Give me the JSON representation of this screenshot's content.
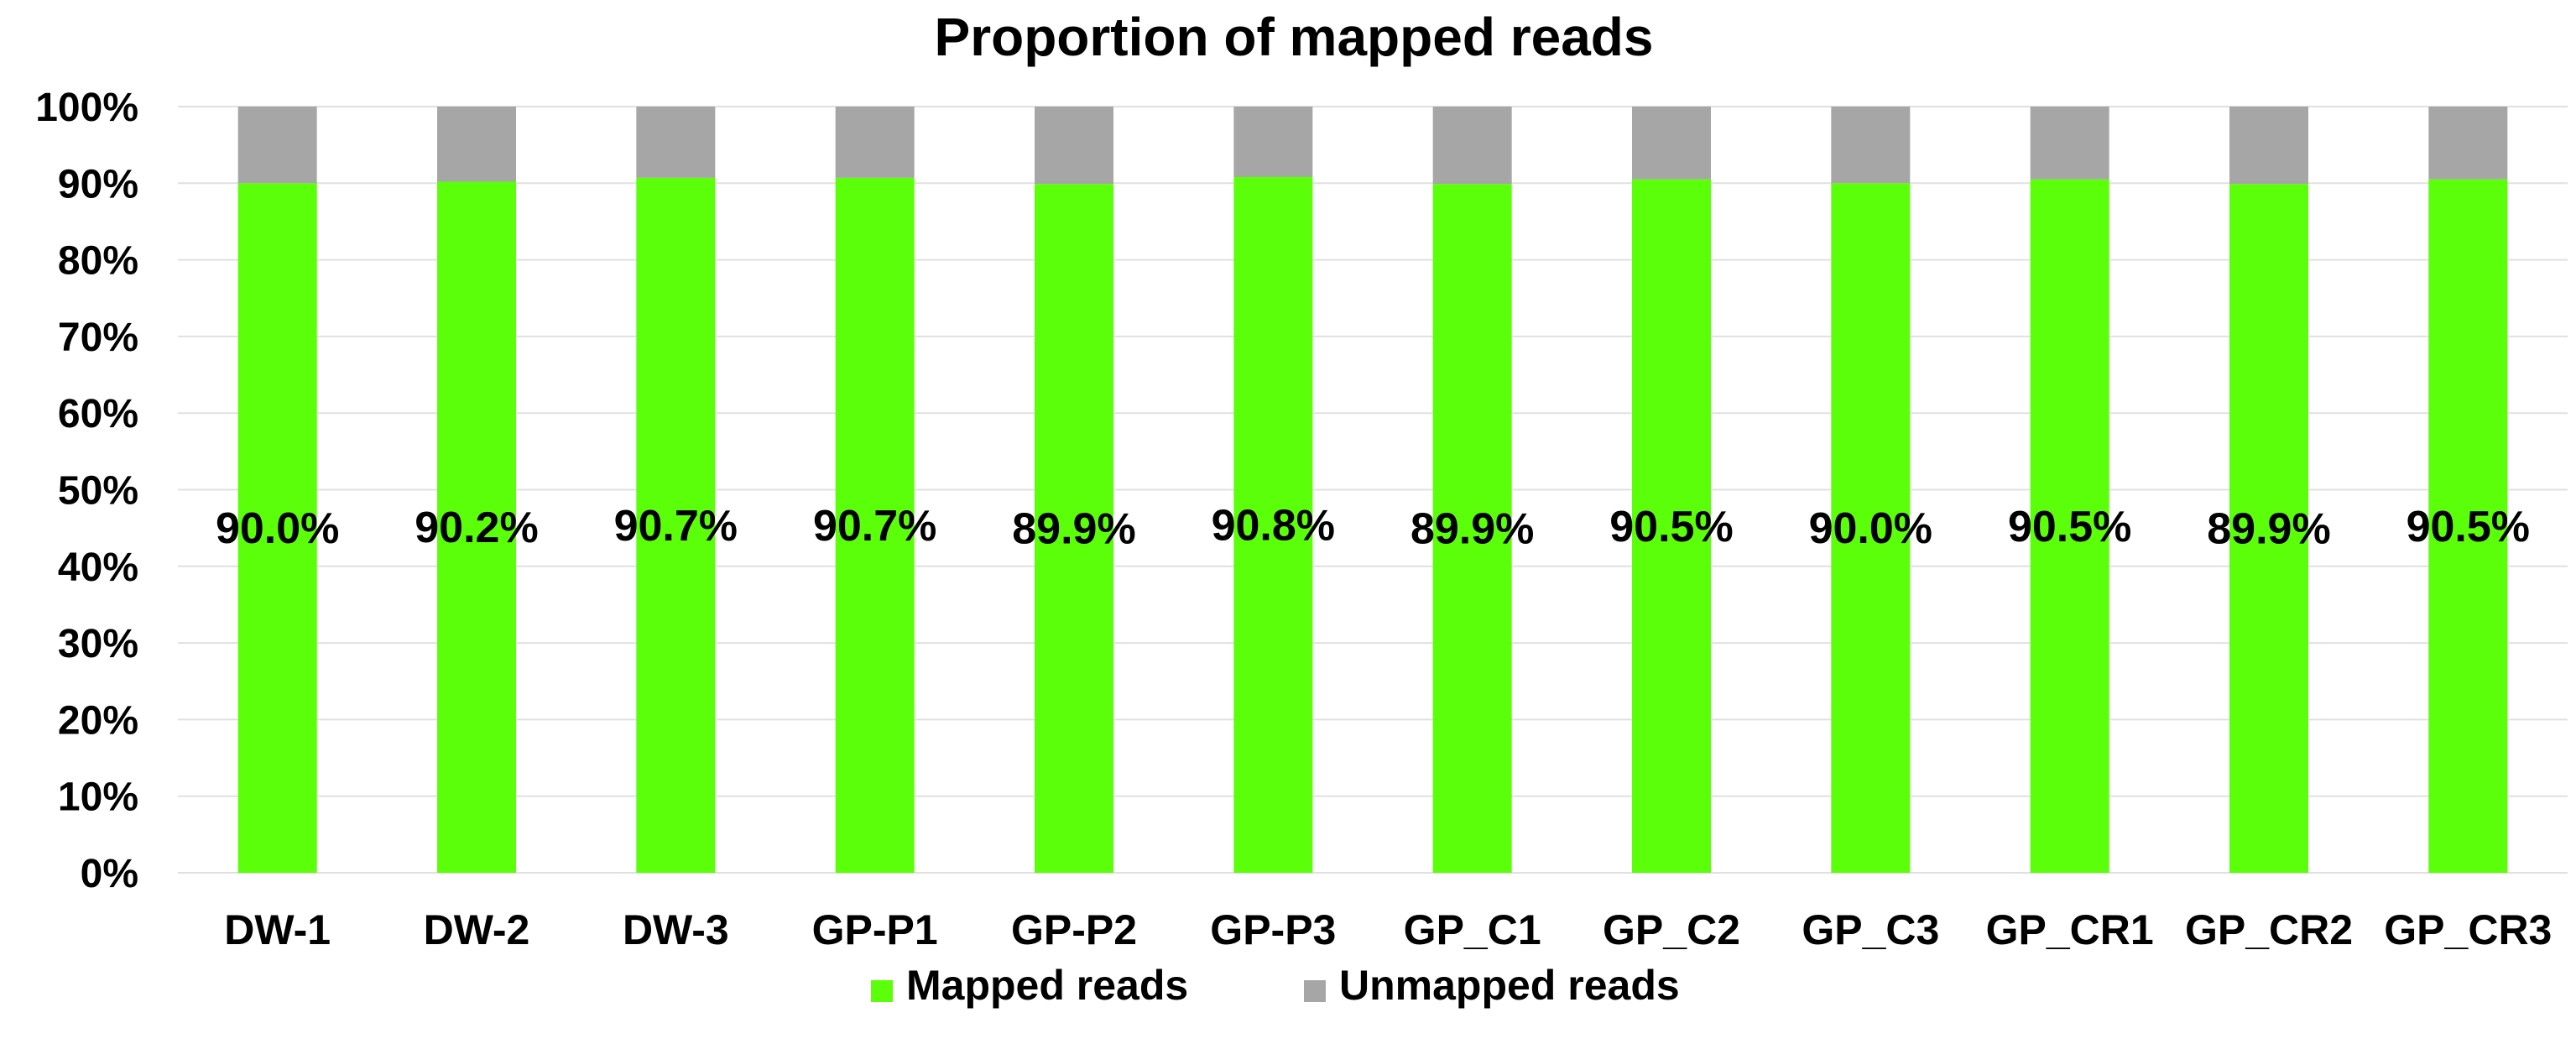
{
  "chart_data": {
    "type": "bar",
    "stacked": "percent",
    "title": "Proportion of mapped reads",
    "xlabel": "",
    "ylabel": "",
    "ylim": [
      0,
      100
    ],
    "yticks": [
      "0%",
      "10%",
      "20%",
      "30%",
      "40%",
      "50%",
      "60%",
      "70%",
      "80%",
      "90%",
      "100%"
    ],
    "grid": true,
    "legend_position": "bottom",
    "categories": [
      "DW-1",
      "DW-2",
      "DW-3",
      "GP-P1",
      "GP-P2",
      "GP-P3",
      "GP_C1",
      "GP_C2",
      "GP_C3",
      "GP_CR1",
      "GP_CR2",
      "GP_CR3"
    ],
    "series": [
      {
        "name": "Mapped reads",
        "color": "#5cff0a",
        "values": [
          90.0,
          90.2,
          90.7,
          90.7,
          89.9,
          90.8,
          89.9,
          90.5,
          90.0,
          90.5,
          89.9,
          90.5
        ],
        "data_labels": [
          "90.0%",
          "90.2%",
          "90.7%",
          "90.7%",
          "89.9%",
          "90.8%",
          "89.9%",
          "90.5%",
          "90.0%",
          "90.5%",
          "89.9%",
          "90.5%"
        ]
      },
      {
        "name": "Unmapped reads",
        "color": "#a6a6a6",
        "values": [
          10.0,
          9.8,
          9.3,
          9.3,
          10.1,
          9.2,
          10.1,
          9.5,
          10.0,
          9.5,
          10.1,
          9.5
        ]
      }
    ]
  }
}
